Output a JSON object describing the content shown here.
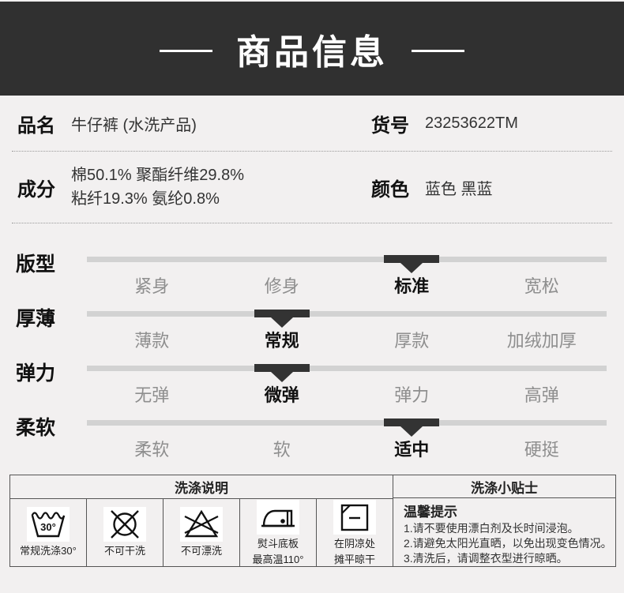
{
  "banner": {
    "title": "商品信息"
  },
  "specs": {
    "name_label": "品名",
    "name_value": "牛仔裤 (水洗产品)",
    "sku_label": "货号",
    "sku_value": "23253622TM",
    "composition_label": "成分",
    "composition_line1": "棉50.1%  聚酯纤维29.8%",
    "composition_line2": "粘纤19.3%  氨纶0.8%",
    "color_label": "颜色",
    "color_value": "蓝色   黑蓝"
  },
  "sliders": [
    {
      "label": "版型",
      "options": [
        "紧身",
        "修身",
        "标准",
        "宽松"
      ],
      "selected_index": 2
    },
    {
      "label": "厚薄",
      "options": [
        "薄款",
        "常规",
        "厚款",
        "加绒加厚"
      ],
      "selected_index": 1
    },
    {
      "label": "弹力",
      "options": [
        "无弹",
        "微弹",
        "弹力",
        "高弹"
      ],
      "selected_index": 1
    },
    {
      "label": "柔软",
      "options": [
        "柔软",
        "软",
        "适中",
        "硬挺"
      ],
      "selected_index": 2
    }
  ],
  "care": {
    "left_header": "洗涤说明",
    "right_header": "洗涤小贴士",
    "icons": [
      {
        "icon": "wash-30-icon",
        "symbol_text": "30°",
        "label_line1": "常规洗涤30°",
        "label_line2": ""
      },
      {
        "icon": "no-dry-clean-icon",
        "label_line1": "不可干洗",
        "label_line2": ""
      },
      {
        "icon": "no-bleach-icon",
        "label_line1": "不可漂洗",
        "label_line2": ""
      },
      {
        "icon": "iron-max-110-icon",
        "label_line1": "熨斗底板",
        "label_line2": "最高温110°"
      },
      {
        "icon": "dry-flat-shade-icon",
        "label_line1": "在阴凉处",
        "label_line2": "摊平晾干"
      }
    ],
    "tips": {
      "title": "温馨提示",
      "lines": [
        "1.请不要使用漂白剂及长时间浸泡。",
        "2.请避免太阳光直晒，以免出现变色情况。",
        "3.清洗后，请调整衣型进行晾晒。"
      ]
    }
  },
  "colors": {
    "page_background": "#f2f0f0",
    "banner_background": "#303030",
    "banner_text": "#ffffff",
    "slider_track": "#d2d2d2",
    "slider_marker": "#333333",
    "option_inactive": "#8e8e8e",
    "option_active": "#111111",
    "table_border": "#555555"
  }
}
